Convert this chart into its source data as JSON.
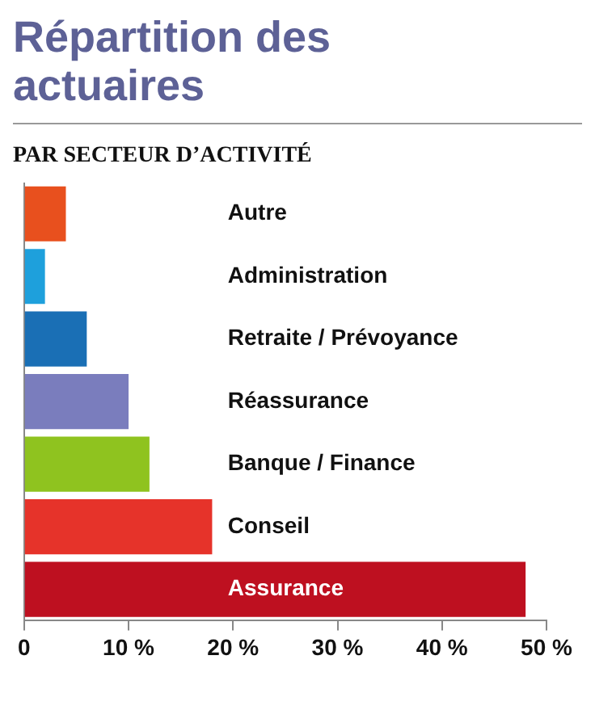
{
  "chart_data": {
    "type": "bar",
    "orientation": "horizontal",
    "title": "Répartition des actuaires",
    "subtitle": "PAR SECTEUR D’ACTIVITÉ",
    "categories": [
      "Autre",
      "Administration",
      "Retraite / Prévoyance",
      "Réassurance",
      "Banque / Finance",
      "Conseil",
      "Assurance"
    ],
    "values": [
      4,
      2,
      6,
      10,
      12,
      18,
      48
    ],
    "colors": [
      "#e8501e",
      "#1ea0dc",
      "#1a6fb5",
      "#7a7dbd",
      "#8fc31f",
      "#e6332a",
      "#be1020"
    ],
    "xlim": [
      0,
      50
    ],
    "xticks": [
      0,
      {
        "value": 10,
        "label": "10 %"
      },
      {
        "value": 20,
        "label": "20 %"
      },
      {
        "value": 30,
        "label": "30 %"
      },
      {
        "value": 40,
        "label": "40 %"
      },
      {
        "value": 50,
        "label": "50 %"
      }
    ],
    "grid": false,
    "legend": false
  }
}
